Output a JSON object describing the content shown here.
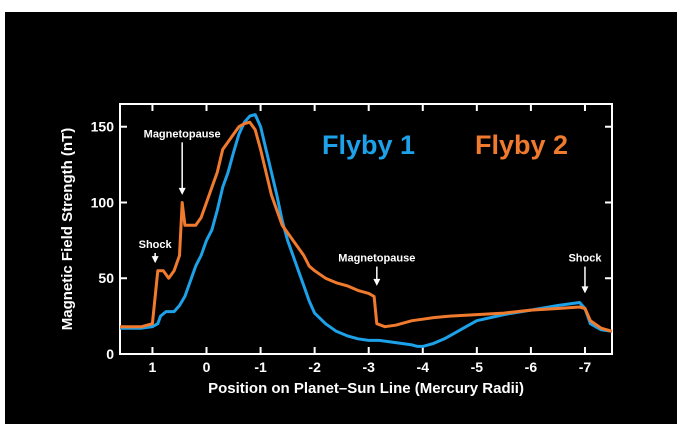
{
  "chart_data": {
    "type": "line",
    "xlabel": "Position on Planet–Sun Line (Mercury Radii)",
    "ylabel": "Magnetic Field Strength (nT)",
    "xlim": [
      1.6,
      -7.5
    ],
    "ylim": [
      0,
      165
    ],
    "x_ticks": [
      1,
      0,
      -1,
      -2,
      -3,
      -4,
      -5,
      -6,
      -7
    ],
    "x_tick_labels": [
      "1",
      "0",
      "-1",
      "-2",
      "-3",
      "-4",
      "-5",
      "-6",
      "-7"
    ],
    "y_ticks": [
      0,
      50,
      100,
      150
    ],
    "y_tick_labels": [
      "0",
      "50",
      "100",
      "150"
    ],
    "grid": false,
    "legend_position": "top-right",
    "series": [
      {
        "name": "Flyby 1",
        "color": "#1da1e8",
        "x": [
          1.6,
          1.2,
          1.0,
          0.9,
          0.85,
          0.75,
          0.6,
          0.5,
          0.4,
          0.3,
          0.2,
          0.1,
          0.0,
          -0.1,
          -0.2,
          -0.3,
          -0.4,
          -0.5,
          -0.6,
          -0.7,
          -0.8,
          -0.9,
          -1.0,
          -1.1,
          -1.2,
          -1.3,
          -1.4,
          -1.5,
          -1.6,
          -1.7,
          -1.8,
          -1.9,
          -2.0,
          -2.2,
          -2.4,
          -2.6,
          -2.8,
          -3.0,
          -3.2,
          -3.4,
          -3.6,
          -3.8,
          -3.9,
          -4.0,
          -4.2,
          -4.4,
          -4.6,
          -4.8,
          -5.0,
          -5.5,
          -6.0,
          -6.5,
          -6.9,
          -7.0,
          -7.1,
          -7.3,
          -7.5
        ],
        "y": [
          17,
          17,
          18,
          20,
          25,
          28,
          28,
          32,
          38,
          48,
          58,
          65,
          75,
          82,
          95,
          110,
          120,
          133,
          145,
          153,
          157,
          158,
          150,
          135,
          120,
          105,
          88,
          75,
          65,
          55,
          45,
          35,
          27,
          20,
          15,
          12,
          10,
          9,
          9,
          8,
          7,
          6,
          5,
          5,
          7,
          10,
          14,
          18,
          22,
          26,
          29,
          32,
          34,
          30,
          20,
          16,
          15
        ]
      },
      {
        "name": "Flyby 2",
        "color": "#f07a2d",
        "x": [
          1.6,
          1.2,
          1.0,
          0.9,
          0.8,
          0.7,
          0.6,
          0.5,
          0.45,
          0.4,
          0.3,
          0.2,
          0.1,
          0.0,
          -0.1,
          -0.2,
          -0.3,
          -0.4,
          -0.5,
          -0.6,
          -0.7,
          -0.8,
          -0.9,
          -1.0,
          -1.1,
          -1.2,
          -1.3,
          -1.4,
          -1.5,
          -1.6,
          -1.7,
          -1.8,
          -1.9,
          -2.0,
          -2.2,
          -2.4,
          -2.6,
          -2.8,
          -3.0,
          -3.1,
          -3.15,
          -3.3,
          -3.5,
          -3.8,
          -4.0,
          -4.2,
          -4.5,
          -5.0,
          -5.5,
          -6.0,
          -6.5,
          -6.9,
          -7.0,
          -7.1,
          -7.3,
          -7.5
        ],
        "y": [
          18,
          18,
          20,
          55,
          55,
          50,
          55,
          65,
          100,
          85,
          85,
          85,
          90,
          100,
          110,
          120,
          135,
          140,
          145,
          150,
          152,
          153,
          148,
          135,
          120,
          105,
          95,
          85,
          80,
          75,
          70,
          65,
          58,
          55,
          50,
          47,
          45,
          42,
          40,
          38,
          20,
          18,
          19,
          22,
          23,
          24,
          25,
          26,
          27,
          29,
          30,
          31,
          30,
          22,
          17,
          15
        ]
      }
    ],
    "annotations": [
      {
        "text": "Shock",
        "x": 0.95,
        "y_text": 70,
        "y_tip": 60
      },
      {
        "text": "Magnetopause",
        "x": 0.45,
        "y_text": 143,
        "y_tip": 105
      },
      {
        "text": "Magnetopause",
        "x": -3.15,
        "y_text": 61,
        "y_tip": 45
      },
      {
        "text": "Shock",
        "x": -7.0,
        "y_text": 61,
        "y_tip": 40
      }
    ]
  }
}
